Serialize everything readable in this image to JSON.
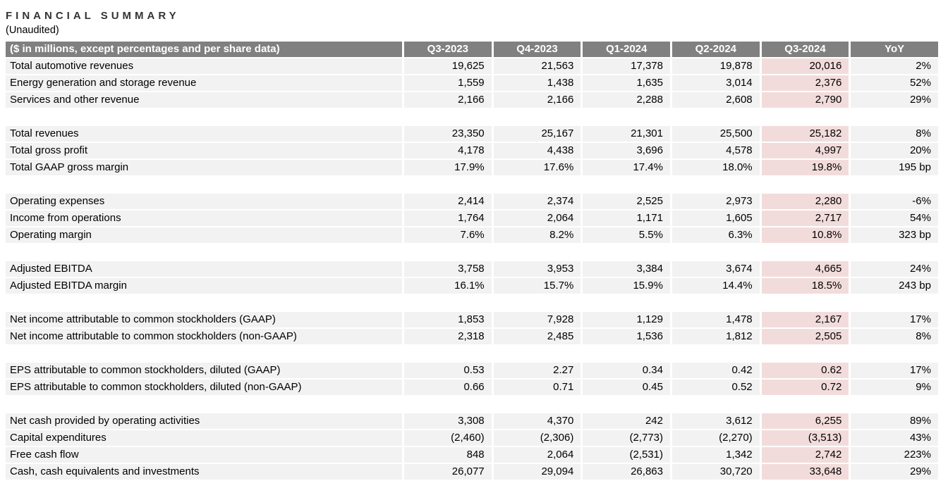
{
  "title": "FINANCIAL SUMMARY",
  "subtitle": "(Unaudited)",
  "colors": {
    "header_bg": "#808080",
    "header_text": "#ffffff",
    "row_bg": "#f2f2f2",
    "highlight_bg": "#f2dcdb"
  },
  "table": {
    "label_header": "($ in millions, except percentages and per share data)",
    "columns": [
      "Q3-2023",
      "Q4-2023",
      "Q1-2024",
      "Q2-2024",
      "Q3-2024",
      "YoY"
    ],
    "highlight_column": "Q3-2024",
    "sections": [
      {
        "rows": [
          {
            "label": "Total automotive revenues",
            "values": [
              "19,625",
              "21,563",
              "17,378",
              "19,878",
              "20,016",
              "2%"
            ]
          },
          {
            "label": "Energy generation and storage revenue",
            "values": [
              "1,559",
              "1,438",
              "1,635",
              "3,014",
              "2,376",
              "52%"
            ]
          },
          {
            "label": "Services and other revenue",
            "values": [
              "2,166",
              "2,166",
              "2,288",
              "2,608",
              "2,790",
              "29%"
            ]
          }
        ]
      },
      {
        "rows": [
          {
            "label": "Total revenues",
            "values": [
              "23,350",
              "25,167",
              "21,301",
              "25,500",
              "25,182",
              "8%"
            ]
          },
          {
            "label": "Total gross profit",
            "values": [
              "4,178",
              "4,438",
              "3,696",
              "4,578",
              "4,997",
              "20%"
            ]
          },
          {
            "label": "Total GAAP gross margin",
            "values": [
              "17.9%",
              "17.6%",
              "17.4%",
              "18.0%",
              "19.8%",
              "195 bp"
            ]
          }
        ]
      },
      {
        "rows": [
          {
            "label": "Operating expenses",
            "values": [
              "2,414",
              "2,374",
              "2,525",
              "2,973",
              "2,280",
              "-6%"
            ]
          },
          {
            "label": "Income from operations",
            "values": [
              "1,764",
              "2,064",
              "1,171",
              "1,605",
              "2,717",
              "54%"
            ]
          },
          {
            "label": "Operating margin",
            "values": [
              "7.6%",
              "8.2%",
              "5.5%",
              "6.3%",
              "10.8%",
              "323 bp"
            ]
          }
        ]
      },
      {
        "rows": [
          {
            "label": "Adjusted EBITDA",
            "values": [
              "3,758",
              "3,953",
              "3,384",
              "3,674",
              "4,665",
              "24%"
            ]
          },
          {
            "label": "Adjusted EBITDA margin",
            "values": [
              "16.1%",
              "15.7%",
              "15.9%",
              "14.4%",
              "18.5%",
              "243 bp"
            ]
          }
        ]
      },
      {
        "rows": [
          {
            "label": "Net income attributable to common stockholders (GAAP)",
            "values": [
              "1,853",
              "7,928",
              "1,129",
              "1,478",
              "2,167",
              "17%"
            ]
          },
          {
            "label": "Net income attributable to common stockholders (non-GAAP)",
            "values": [
              "2,318",
              "2,485",
              "1,536",
              "1,812",
              "2,505",
              "8%"
            ]
          }
        ]
      },
      {
        "rows": [
          {
            "label": "EPS attributable to common stockholders, diluted (GAAP)",
            "values": [
              "0.53",
              "2.27",
              "0.34",
              "0.42",
              "0.62",
              "17%"
            ]
          },
          {
            "label": "EPS attributable to common stockholders, diluted (non-GAAP)",
            "values": [
              "0.66",
              "0.71",
              "0.45",
              "0.52",
              "0.72",
              "9%"
            ]
          }
        ]
      },
      {
        "rows": [
          {
            "label": "Net cash provided by operating activities",
            "values": [
              "3,308",
              "4,370",
              "242",
              "3,612",
              "6,255",
              "89%"
            ]
          },
          {
            "label": "Capital expenditures",
            "values": [
              "(2,460)",
              "(2,306)",
              "(2,773)",
              "(2,270)",
              "(3,513)",
              "43%"
            ]
          },
          {
            "label": "Free cash flow",
            "values": [
              "848",
              "2,064",
              "(2,531)",
              "1,342",
              "2,742",
              "223%"
            ]
          },
          {
            "label": "Cash, cash equivalents and investments",
            "values": [
              "26,077",
              "29,094",
              "26,863",
              "30,720",
              "33,648",
              "29%"
            ]
          }
        ]
      }
    ]
  }
}
